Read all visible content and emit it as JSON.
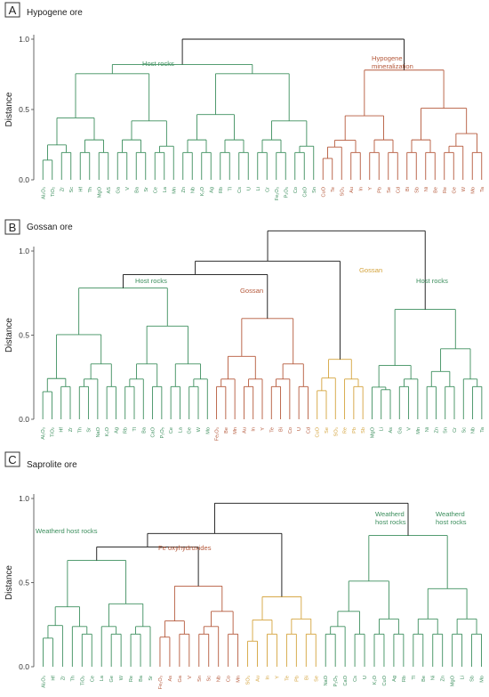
{
  "colors": {
    "green": "#3d8f5e",
    "brown": "#b5593b",
    "gold": "#d4a33c",
    "black": "#111111"
  },
  "chart_data": [
    {
      "type": "dendrogram",
      "panel": "A",
      "title": "Hypogene ore",
      "ylabel": "Distance",
      "ylim": [
        0,
        1.15
      ],
      "yticks": [
        0.0,
        0.5,
        1.0
      ],
      "leaves": [
        {
          "label": "Al₂O₃",
          "color": "green"
        },
        {
          "label": "TiO₂",
          "color": "green"
        },
        {
          "label": "Zr",
          "color": "green"
        },
        {
          "label": "Sc",
          "color": "green"
        },
        {
          "label": "Hf",
          "color": "green"
        },
        {
          "label": "Th",
          "color": "green"
        },
        {
          "label": "MgO",
          "color": "green"
        },
        {
          "label": "AS",
          "color": "green"
        },
        {
          "label": "Ga",
          "color": "green"
        },
        {
          "label": "V",
          "color": "green"
        },
        {
          "label": "Ba",
          "color": "green"
        },
        {
          "label": "Sr",
          "color": "green"
        },
        {
          "label": "Ce",
          "color": "green"
        },
        {
          "label": "La",
          "color": "green"
        },
        {
          "label": "Mn",
          "color": "green"
        },
        {
          "label": "Zn",
          "color": "green"
        },
        {
          "label": "Nb",
          "color": "green"
        },
        {
          "label": "K₂O",
          "color": "green"
        },
        {
          "label": "Ag",
          "color": "green"
        },
        {
          "label": "Rb",
          "color": "green"
        },
        {
          "label": "Tl",
          "color": "green"
        },
        {
          "label": "Cs",
          "color": "green"
        },
        {
          "label": "U",
          "color": "green"
        },
        {
          "label": "Li",
          "color": "green"
        },
        {
          "label": "Cr",
          "color": "green"
        },
        {
          "label": "Fe₂O₃",
          "color": "green"
        },
        {
          "label": "P₂O₅",
          "color": "green"
        },
        {
          "label": "Co",
          "color": "green"
        },
        {
          "label": "CaO",
          "color": "green"
        },
        {
          "label": "Sn",
          "color": "green"
        },
        {
          "label": "CuO",
          "color": "brown"
        },
        {
          "label": "Te",
          "color": "brown"
        },
        {
          "label": "SO₃",
          "color": "brown"
        },
        {
          "label": "Au",
          "color": "brown"
        },
        {
          "label": "In",
          "color": "brown"
        },
        {
          "label": "Y",
          "color": "brown"
        },
        {
          "label": "Pb",
          "color": "brown"
        },
        {
          "label": "Se",
          "color": "brown"
        },
        {
          "label": "Cd",
          "color": "brown"
        },
        {
          "label": "Bi",
          "color": "brown"
        },
        {
          "label": "Sb",
          "color": "brown"
        },
        {
          "label": "Ni",
          "color": "brown"
        },
        {
          "label": "Be",
          "color": "brown"
        },
        {
          "label": "Re",
          "color": "brown"
        },
        {
          "label": "Ge",
          "color": "brown"
        },
        {
          "label": "W",
          "color": "brown"
        },
        {
          "label": "Mo",
          "color": "brown"
        },
        {
          "label": "Ta",
          "color": "brown"
        }
      ],
      "annotations": [
        {
          "text": "Host rocks",
          "color": "green"
        },
        {
          "text": "Hypogene mineralization",
          "color": "brown"
        }
      ]
    },
    {
      "type": "dendrogram",
      "panel": "B",
      "title": "Gossan ore",
      "ylabel": "Distance",
      "ylim": [
        0,
        1.15
      ],
      "yticks": [
        0.0,
        0.5,
        1.0
      ],
      "leaves": [
        {
          "label": "Al₂O₃",
          "color": "green"
        },
        {
          "label": "TiO₂",
          "color": "green"
        },
        {
          "label": "Hf",
          "color": "green"
        },
        {
          "label": "Zr",
          "color": "green"
        },
        {
          "label": "Th",
          "color": "green"
        },
        {
          "label": "Sr",
          "color": "green"
        },
        {
          "label": "NaO",
          "color": "green"
        },
        {
          "label": "K₂O",
          "color": "green"
        },
        {
          "label": "Ag",
          "color": "green"
        },
        {
          "label": "Rb",
          "color": "green"
        },
        {
          "label": "Tl",
          "color": "green"
        },
        {
          "label": "Ba",
          "color": "green"
        },
        {
          "label": "CaO",
          "color": "green"
        },
        {
          "label": "P₂O₅",
          "color": "green"
        },
        {
          "label": "Ce",
          "color": "green"
        },
        {
          "label": "La",
          "color": "green"
        },
        {
          "label": "Ge",
          "color": "green"
        },
        {
          "label": "W",
          "color": "green"
        },
        {
          "label": "Mo",
          "color": "green"
        },
        {
          "label": "Fe₂O₃",
          "color": "brown"
        },
        {
          "label": "Be",
          "color": "brown"
        },
        {
          "label": "Mn",
          "color": "brown"
        },
        {
          "label": "Au",
          "color": "brown"
        },
        {
          "label": "In",
          "color": "brown"
        },
        {
          "label": "Y",
          "color": "brown"
        },
        {
          "label": "Te",
          "color": "brown"
        },
        {
          "label": "Bi",
          "color": "brown"
        },
        {
          "label": "Co",
          "color": "brown"
        },
        {
          "label": "U",
          "color": "brown"
        },
        {
          "label": "Cd",
          "color": "brown"
        },
        {
          "label": "CuO",
          "color": "gold"
        },
        {
          "label": "Se",
          "color": "gold"
        },
        {
          "label": "SO₃",
          "color": "gold"
        },
        {
          "label": "Re",
          "color": "gold"
        },
        {
          "label": "Pb",
          "color": "gold"
        },
        {
          "label": "Sb",
          "color": "gold"
        },
        {
          "label": "MgO",
          "color": "green"
        },
        {
          "label": "Li",
          "color": "green"
        },
        {
          "label": "As",
          "color": "green"
        },
        {
          "label": "Ga",
          "color": "green"
        },
        {
          "label": "V",
          "color": "green"
        },
        {
          "label": "Mn",
          "color": "green"
        },
        {
          "label": "Ni",
          "color": "green"
        },
        {
          "label": "Zn",
          "color": "green"
        },
        {
          "label": "Sn",
          "color": "green"
        },
        {
          "label": "Cr",
          "color": "green"
        },
        {
          "label": "Sc",
          "color": "green"
        },
        {
          "label": "Nb",
          "color": "green"
        },
        {
          "label": "Ta",
          "color": "green"
        }
      ],
      "annotations": [
        {
          "text": "Host rocks",
          "color": "green"
        },
        {
          "text": "Gossan",
          "color": "brown"
        },
        {
          "text": "Gossan",
          "color": "gold"
        },
        {
          "text": "Host rocks",
          "color": "green"
        }
      ]
    },
    {
      "type": "dendrogram",
      "panel": "C",
      "title": "Saprolite ore",
      "ylabel": "Distance",
      "ylim": [
        0,
        1.2
      ],
      "yticks": [
        0.0,
        0.5,
        1.0
      ],
      "leaves": [
        {
          "label": "Al₂O₃",
          "color": "green"
        },
        {
          "label": "Hf",
          "color": "green"
        },
        {
          "label": "Zr",
          "color": "green"
        },
        {
          "label": "Th",
          "color": "green"
        },
        {
          "label": "TiO₂",
          "color": "green"
        },
        {
          "label": "Ce",
          "color": "green"
        },
        {
          "label": "La",
          "color": "green"
        },
        {
          "label": "Ge",
          "color": "green"
        },
        {
          "label": "W",
          "color": "green"
        },
        {
          "label": "Re",
          "color": "green"
        },
        {
          "label": "Ba",
          "color": "green"
        },
        {
          "label": "Sr",
          "color": "green"
        },
        {
          "label": "Fe₂O₃",
          "color": "brown"
        },
        {
          "label": "As",
          "color": "brown"
        },
        {
          "label": "Ga",
          "color": "brown"
        },
        {
          "label": "V",
          "color": "brown"
        },
        {
          "label": "Sn",
          "color": "brown"
        },
        {
          "label": "Sc",
          "color": "brown"
        },
        {
          "label": "Nb",
          "color": "brown"
        },
        {
          "label": "Co",
          "color": "brown"
        },
        {
          "label": "Mn",
          "color": "brown"
        },
        {
          "label": "SO₃",
          "color": "gold"
        },
        {
          "label": "Au",
          "color": "gold"
        },
        {
          "label": "In",
          "color": "gold"
        },
        {
          "label": "Y",
          "color": "gold"
        },
        {
          "label": "Te",
          "color": "gold"
        },
        {
          "label": "Pb",
          "color": "gold"
        },
        {
          "label": "Bi",
          "color": "gold"
        },
        {
          "label": "Se",
          "color": "gold"
        },
        {
          "label": "NaO",
          "color": "green"
        },
        {
          "label": "P₂O₅",
          "color": "green"
        },
        {
          "label": "CaO",
          "color": "green"
        },
        {
          "label": "Cs",
          "color": "green"
        },
        {
          "label": "U",
          "color": "green"
        },
        {
          "label": "K₂O",
          "color": "green"
        },
        {
          "label": "CuO",
          "color": "green"
        },
        {
          "label": "Ag",
          "color": "green"
        },
        {
          "label": "Rb",
          "color": "green"
        },
        {
          "label": "Tl",
          "color": "green"
        },
        {
          "label": "Be",
          "color": "green"
        },
        {
          "label": "Ni",
          "color": "green"
        },
        {
          "label": "Zn",
          "color": "green"
        },
        {
          "label": "MgO",
          "color": "green"
        },
        {
          "label": "Li",
          "color": "green"
        },
        {
          "label": "Sb",
          "color": "green"
        },
        {
          "label": "Mo",
          "color": "green"
        }
      ],
      "annotations": [
        {
          "text": "Weatherd host rocks",
          "color": "green"
        },
        {
          "text": "Fe oxyhydroxides",
          "color": "brown"
        },
        {
          "text": "Weatherd host rocks",
          "color": "green"
        },
        {
          "text": "Weatherd host rocks",
          "color": "green"
        }
      ]
    }
  ]
}
